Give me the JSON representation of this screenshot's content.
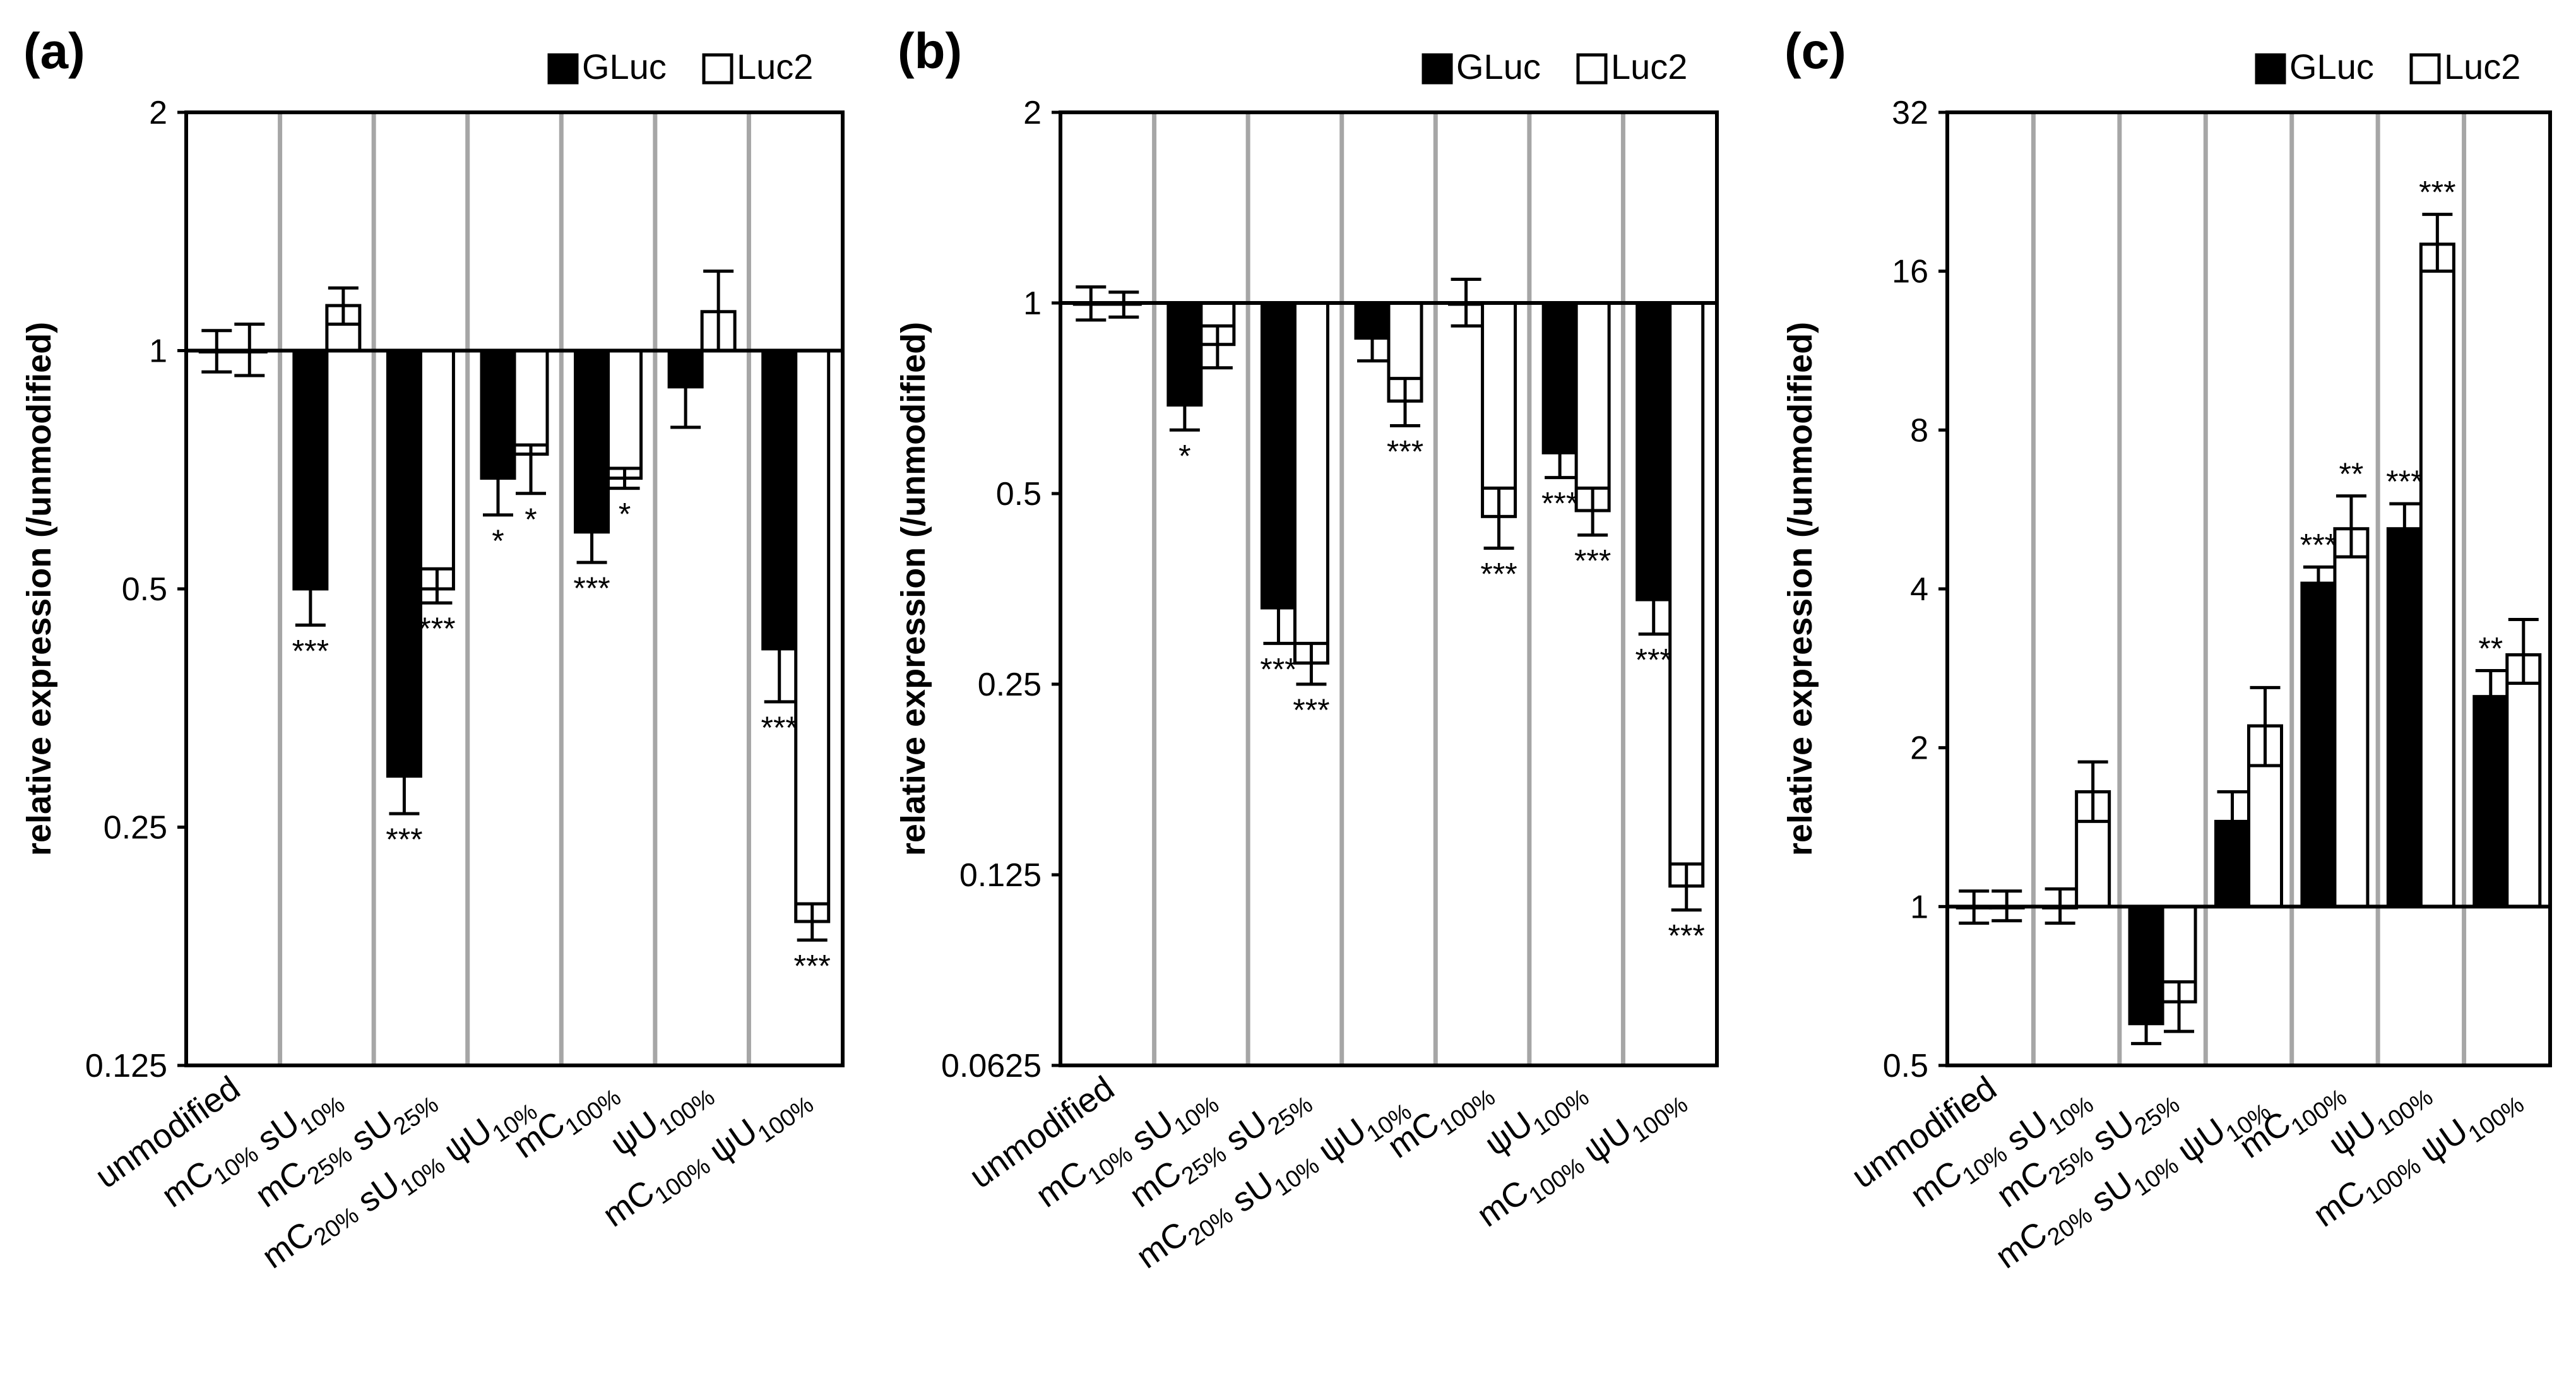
{
  "chart_data": [
    {
      "panel_label": "(a)",
      "type": "bar",
      "scale": "log2",
      "ylabel": "relative expression (/unmodified)",
      "ylim": [
        0.125,
        2
      ],
      "yticks": [
        "0.125",
        "0.25",
        "0.5",
        "1",
        "2"
      ],
      "grid": "vertical separators between categories",
      "legend": "top-right",
      "categories": [
        {
          "base": "unmodified",
          "parts": [
            {
              "t": "unmodified"
            }
          ]
        },
        {
          "base": "mC sU",
          "parts": [
            {
              "t": "mC"
            },
            {
              "t": "10%",
              "sub": true
            },
            {
              "t": " sU"
            },
            {
              "t": "10%",
              "sub": true
            }
          ]
        },
        {
          "base": "mC sU",
          "parts": [
            {
              "t": "mC"
            },
            {
              "t": "25%",
              "sub": true
            },
            {
              "t": " sU"
            },
            {
              "t": "25%",
              "sub": true
            }
          ]
        },
        {
          "base": "mC sU ψU",
          "parts": [
            {
              "t": "mC"
            },
            {
              "t": "20%",
              "sub": true
            },
            {
              "t": " sU"
            },
            {
              "t": "10%",
              "sub": true
            },
            {
              "t": " ψU"
            },
            {
              "t": "10%",
              "sub": true
            }
          ]
        },
        {
          "base": "mC",
          "parts": [
            {
              "t": "mC"
            },
            {
              "t": "100%",
              "sub": true
            }
          ]
        },
        {
          "base": "ψU",
          "parts": [
            {
              "t": "ψU"
            },
            {
              "t": "100%",
              "sub": true
            }
          ]
        },
        {
          "base": "mC ψU",
          "parts": [
            {
              "t": "mC"
            },
            {
              "t": "100%",
              "sub": true
            },
            {
              "t": " ψU"
            },
            {
              "t": "100%",
              "sub": true
            }
          ]
        }
      ],
      "series": [
        {
          "name": "GLuc",
          "color": "#000000",
          "values": [
            1.0,
            0.5,
            0.29,
            0.69,
            0.59,
            0.9,
            0.42
          ],
          "err": [
            [
              0.94,
              1.06
            ],
            [
              0.45,
              0.56
            ],
            [
              0.26,
              0.32
            ],
            [
              0.62,
              0.76
            ],
            [
              0.54,
              0.64
            ],
            [
              0.8,
              1.0
            ],
            [
              0.36,
              0.48
            ]
          ],
          "sig": [
            "",
            "***",
            "***",
            "*",
            "***",
            "",
            "***"
          ]
        },
        {
          "name": "Luc2",
          "color": "#ffffff",
          "values": [
            1.0,
            1.14,
            0.5,
            0.74,
            0.69,
            1.12,
            0.19
          ],
          "err": [
            [
              0.93,
              1.08
            ],
            [
              1.08,
              1.2
            ],
            [
              0.48,
              0.53
            ],
            [
              0.66,
              0.76
            ],
            [
              0.67,
              0.71
            ],
            [
              1.0,
              1.26
            ],
            [
              0.18,
              0.2
            ]
          ],
          "sig": [
            "",
            "",
            "***",
            "*",
            "*",
            "",
            "***"
          ]
        }
      ]
    },
    {
      "panel_label": "(b)",
      "type": "bar",
      "scale": "log2",
      "ylabel": "relative expression (/unmodified)",
      "ylim": [
        0.0625,
        2
      ],
      "yticks": [
        "0.0625",
        "0.125",
        "0.25",
        "0.5",
        "1",
        "2"
      ],
      "grid": "vertical separators between categories",
      "legend": "top-right",
      "categories": [
        {
          "base": "unmodified",
          "parts": [
            {
              "t": "unmodified"
            }
          ]
        },
        {
          "base": "mC sU",
          "parts": [
            {
              "t": "mC"
            },
            {
              "t": "10%",
              "sub": true
            },
            {
              "t": " sU"
            },
            {
              "t": "10%",
              "sub": true
            }
          ]
        },
        {
          "base": "mC sU",
          "parts": [
            {
              "t": "mC"
            },
            {
              "t": "25%",
              "sub": true
            },
            {
              "t": " sU"
            },
            {
              "t": "25%",
              "sub": true
            }
          ]
        },
        {
          "base": "mC sU ψU",
          "parts": [
            {
              "t": "mC"
            },
            {
              "t": "20%",
              "sub": true
            },
            {
              "t": " sU"
            },
            {
              "t": "10%",
              "sub": true
            },
            {
              "t": " ψU"
            },
            {
              "t": "10%",
              "sub": true
            }
          ]
        },
        {
          "base": "mC",
          "parts": [
            {
              "t": "mC"
            },
            {
              "t": "100%",
              "sub": true
            }
          ]
        },
        {
          "base": "ψU",
          "parts": [
            {
              "t": "ψU"
            },
            {
              "t": "100%",
              "sub": true
            }
          ]
        },
        {
          "base": "mC ψU",
          "parts": [
            {
              "t": "mC"
            },
            {
              "t": "100%",
              "sub": true
            },
            {
              "t": " ψU"
            },
            {
              "t": "100%",
              "sub": true
            }
          ]
        }
      ],
      "series": [
        {
          "name": "GLuc",
          "color": "#000000",
          "values": [
            1.0,
            0.69,
            0.33,
            0.88,
            1.0,
            0.58,
            0.34
          ],
          "err": [
            [
              0.94,
              1.06
            ],
            [
              0.63,
              0.75
            ],
            [
              0.29,
              0.37
            ],
            [
              0.81,
              0.95
            ],
            [
              0.92,
              1.09
            ],
            [
              0.53,
              0.64
            ],
            [
              0.3,
              0.39
            ]
          ],
          "sig": [
            "",
            "*",
            "***",
            "",
            "",
            "***",
            "***"
          ]
        },
        {
          "name": "Luc2",
          "color": "#ffffff",
          "values": [
            1.0,
            0.86,
            0.27,
            0.7,
            0.46,
            0.47,
            0.12
          ],
          "err": [
            [
              0.95,
              1.04
            ],
            [
              0.79,
              0.92
            ],
            [
              0.25,
              0.29
            ],
            [
              0.64,
              0.76
            ],
            [
              0.41,
              0.51
            ],
            [
              0.43,
              0.51
            ],
            [
              0.11,
              0.13
            ]
          ],
          "sig": [
            "",
            "",
            "***",
            "***",
            "***",
            "***",
            "***"
          ]
        }
      ]
    },
    {
      "panel_label": "(c)",
      "type": "bar",
      "scale": "log2",
      "ylabel": "relative expression (/unmodified)",
      "ylim": [
        0.5,
        32
      ],
      "yticks": [
        "0.5",
        "1",
        "2",
        "4",
        "8",
        "16",
        "32"
      ],
      "grid": "vertical separators between categories",
      "legend": "top-right",
      "categories": [
        {
          "base": "unmodified",
          "parts": [
            {
              "t": "unmodified"
            }
          ]
        },
        {
          "base": "mC sU",
          "parts": [
            {
              "t": "mC"
            },
            {
              "t": "10%",
              "sub": true
            },
            {
              "t": " sU"
            },
            {
              "t": "10%",
              "sub": true
            }
          ]
        },
        {
          "base": "mC sU",
          "parts": [
            {
              "t": "mC"
            },
            {
              "t": "25%",
              "sub": true
            },
            {
              "t": " sU"
            },
            {
              "t": "25%",
              "sub": true
            }
          ]
        },
        {
          "base": "mC sU ψU",
          "parts": [
            {
              "t": "mC"
            },
            {
              "t": "20%",
              "sub": true
            },
            {
              "t": " sU"
            },
            {
              "t": "10%",
              "sub": true
            },
            {
              "t": " ψU"
            },
            {
              "t": "10%",
              "sub": true
            }
          ]
        },
        {
          "base": "mC",
          "parts": [
            {
              "t": "mC"
            },
            {
              "t": "100%",
              "sub": true
            }
          ]
        },
        {
          "base": "ψU",
          "parts": [
            {
              "t": "ψU"
            },
            {
              "t": "100%",
              "sub": true
            }
          ]
        },
        {
          "base": "mC ψU",
          "parts": [
            {
              "t": "mC"
            },
            {
              "t": "100%",
              "sub": true
            },
            {
              "t": " ψU"
            },
            {
              "t": "100%",
              "sub": true
            }
          ]
        }
      ],
      "series": [
        {
          "name": "GLuc",
          "color": "#000000",
          "values": [
            1.0,
            1.0,
            0.6,
            1.45,
            4.1,
            5.2,
            2.5
          ],
          "err": [
            [
              0.93,
              1.07
            ],
            [
              0.93,
              1.08
            ],
            [
              0.55,
              0.66
            ],
            [
              1.28,
              1.65
            ],
            [
              3.85,
              4.4
            ],
            [
              4.8,
              5.8
            ],
            [
              2.25,
              2.8
            ]
          ],
          "sig": [
            "",
            "",
            "",
            "",
            "***",
            "***",
            "**"
          ]
        },
        {
          "name": "Luc2",
          "color": "#ffffff",
          "values": [
            1.0,
            1.65,
            0.66,
            2.2,
            5.2,
            18.0,
            3.0
          ],
          "err": [
            [
              0.94,
              1.07
            ],
            [
              1.45,
              1.88
            ],
            [
              0.58,
              0.72
            ],
            [
              1.85,
              2.6
            ],
            [
              4.6,
              6.0
            ],
            [
              16.0,
              20.5
            ],
            [
              2.65,
              3.5
            ]
          ],
          "sig": [
            "",
            "",
            "",
            "",
            "**",
            "***",
            ""
          ]
        }
      ]
    }
  ]
}
